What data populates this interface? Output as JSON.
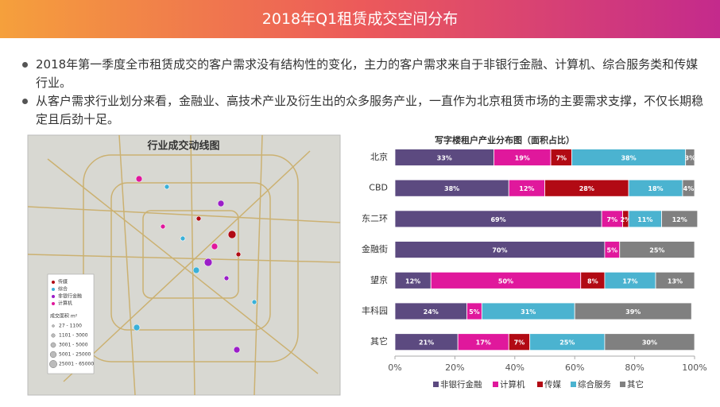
{
  "header": {
    "title": "2018年Q1租赁成交空间分布"
  },
  "bullets": [
    "2018年第一季度全市租赁成交的客户需求没有结构性的变化，主力的客户需求来自于非银行金融、计算机、综合服务类和传媒行业。",
    "从客户需求行业划分来看，金融业、高技术产业及衍生出的众多服务产业，一直作为北京租赁市场的主要需求支撑，不仅长期稳定且后劲十足。"
  ],
  "map": {
    "title": "行业成交动线图",
    "legend": [
      "传媒",
      "综合",
      "非银行金融",
      "计算机"
    ],
    "size_title": "成交面积 m²",
    "sizes": [
      "27 - 1100",
      "1101 - 3000",
      "3001 - 5000",
      "5001 - 25000",
      "25001 - 65000"
    ]
  },
  "chart_data": {
    "type": "stacked-bar-horizontal",
    "title": "写字楼租户产业分布图（面积占比）",
    "categories": [
      "北京",
      "CBD",
      "东二环",
      "金融街",
      "望京",
      "丰科园",
      "其它"
    ],
    "series": [
      {
        "name": "非银行金融",
        "color": "#5c4a80",
        "values": [
          33,
          38,
          69,
          70,
          12,
          24,
          21
        ],
        "value_labels": [
          "33%",
          "38%",
          "69%",
          "70%",
          "12%",
          "24%",
          "21%"
        ]
      },
      {
        "name": "计算机",
        "color": "#e0189c",
        "values": [
          19,
          12,
          7,
          5,
          50,
          5,
          17
        ],
        "value_labels": [
          "19%",
          "12%",
          "7%",
          "5%",
          "50%",
          "5%",
          "17%"
        ]
      },
      {
        "name": "传媒",
        "color": "#b20a14",
        "values": [
          7,
          28,
          2,
          null,
          8,
          null,
          7
        ],
        "value_labels": [
          "7%",
          "28%",
          "2%",
          null,
          "8%",
          null,
          "7%"
        ]
      },
      {
        "name": "综合服务",
        "color": "#4bb3d0",
        "values": [
          38,
          18,
          11,
          null,
          17,
          31,
          25
        ],
        "value_labels": [
          "38%",
          "18%",
          "11%",
          null,
          "17%",
          "31%",
          "25%"
        ]
      },
      {
        "name": "其它",
        "color": "#808080",
        "values": [
          3,
          4,
          12,
          25,
          13,
          39,
          30
        ],
        "value_labels": [
          "3%",
          "4%",
          "12%",
          "25%",
          "13%",
          "39%",
          "30%"
        ]
      }
    ],
    "xlim": [
      0,
      100
    ],
    "xticks": [
      {
        "value": 0,
        "label": "0%"
      },
      {
        "value": 20,
        "label": "20%"
      },
      {
        "value": 40,
        "label": "40%"
      },
      {
        "value": 60,
        "label": "60%"
      },
      {
        "value": 80,
        "label": "80%"
      },
      {
        "value": 100,
        "label": "100%"
      }
    ],
    "legend": "bottom"
  }
}
